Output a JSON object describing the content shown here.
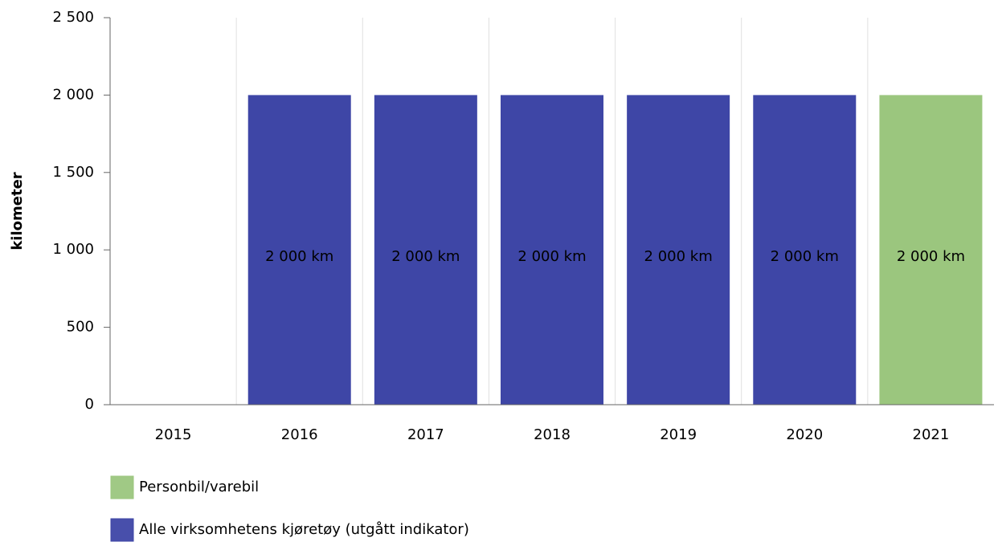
{
  "chart_data": {
    "type": "bar",
    "stacked": true,
    "y_label": "kilometer",
    "categories": [
      "2015",
      "2016",
      "2017",
      "2018",
      "2019",
      "2020",
      "2021"
    ],
    "series": [
      {
        "name": "Personbil/varebil",
        "color": "#9bc67e",
        "values": [
          null,
          null,
          null,
          null,
          null,
          null,
          2000
        ],
        "value_labels": [
          null,
          null,
          null,
          null,
          null,
          null,
          "2 000 km"
        ]
      },
      {
        "name": "Alle virksomhetens kjøretøy (utgått indikator)",
        "color": "#3e46a6",
        "values": [
          null,
          2000,
          2000,
          2000,
          2000,
          2000,
          null
        ],
        "value_labels": [
          null,
          "2 000 km",
          "2 000 km",
          "2 000 km",
          "2 000 km",
          "2 000 km",
          null
        ]
      }
    ],
    "ylim": [
      0,
      2500
    ],
    "yticks": [
      0,
      500,
      {
        "value": 1000,
        "label": "1 000"
      },
      {
        "value": 1500,
        "label": "1 500"
      },
      {
        "value": 2000,
        "label": "2 000"
      },
      {
        "value": 2500,
        "label": "2 500"
      }
    ],
    "grid": true
  }
}
